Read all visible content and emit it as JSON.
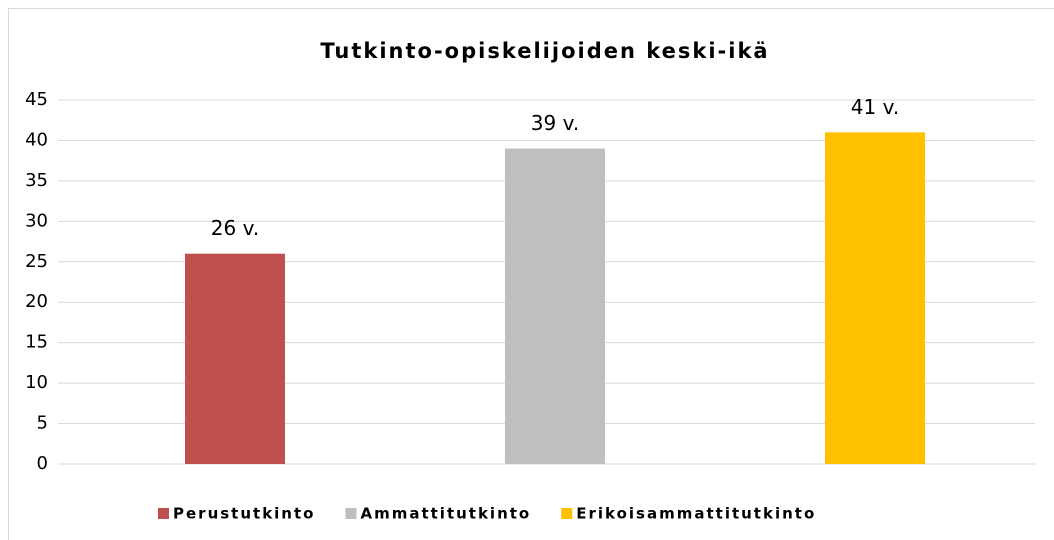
{
  "chart_data": {
    "type": "bar",
    "title": "Tutkinto-opiskelijoiden keski-ikä",
    "categories": [
      null,
      null,
      null
    ],
    "series": [
      {
        "name": "Perustutkinto",
        "color": "#c0504d",
        "values": [
          26,
          null,
          null
        ],
        "value_labels": [
          "26 v.",
          null,
          null
        ]
      },
      {
        "name": "Ammattitutkinto",
        "color": "#bfbfbf",
        "values": [
          null,
          39,
          null
        ],
        "value_labels": [
          null,
          "39 v.",
          null
        ]
      },
      {
        "name": "Erikoisammattitutkinto",
        "color": "#ffc000",
        "values": [
          null,
          null,
          41
        ],
        "value_labels": [
          null,
          null,
          "41 v."
        ]
      }
    ],
    "ylim": [
      0,
      45
    ],
    "yticks": [
      0,
      5,
      10,
      15,
      20,
      25,
      30,
      35,
      40,
      45
    ],
    "grid": true,
    "legend": "bottom"
  }
}
